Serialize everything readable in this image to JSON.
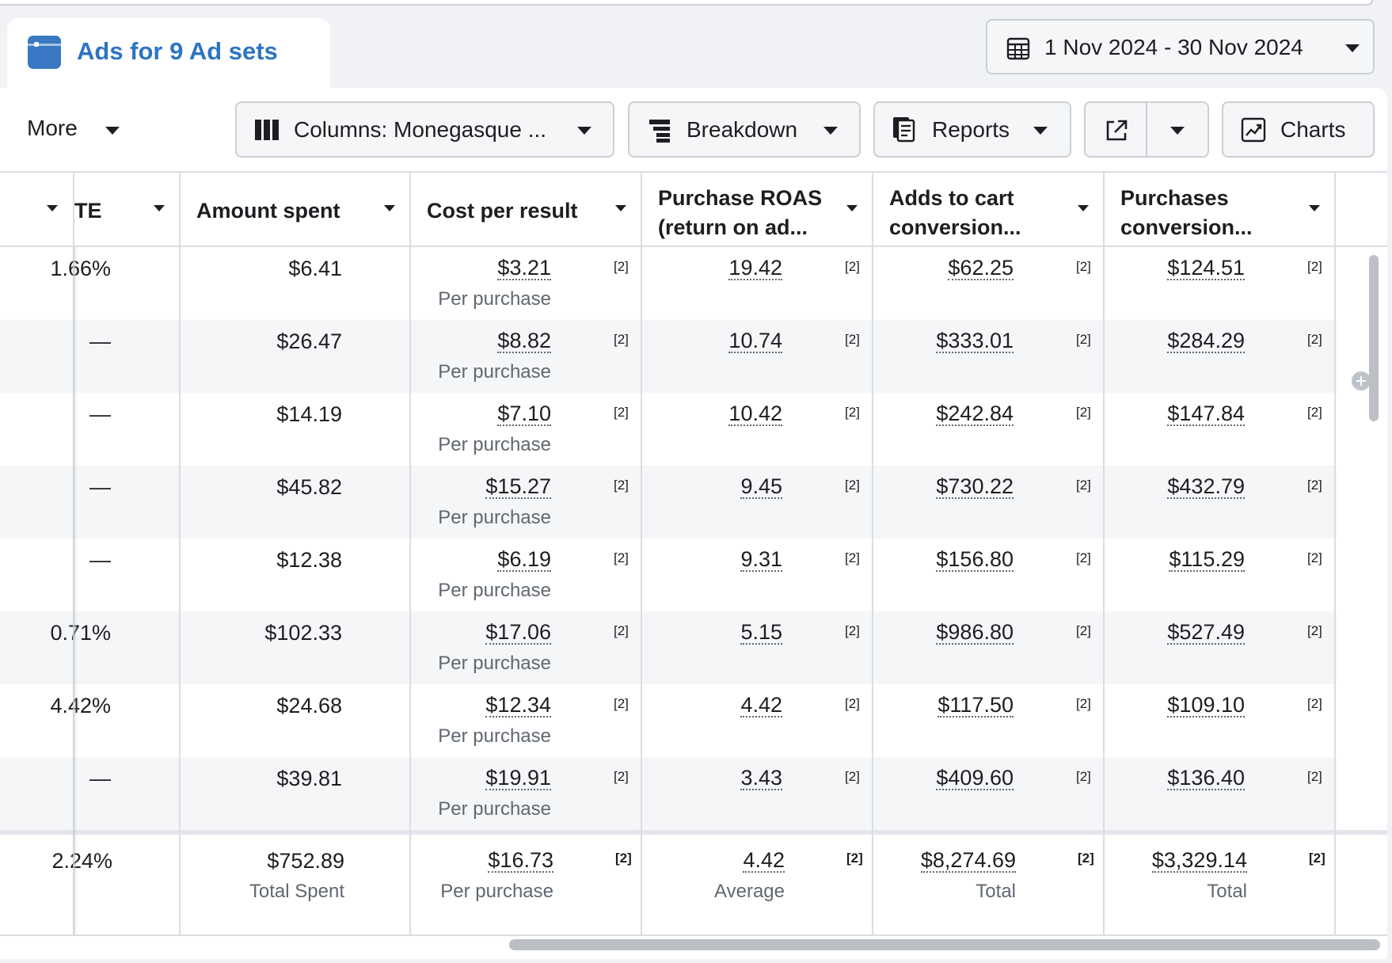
{
  "tab": {
    "title": "Ads for 9 Ad sets",
    "icon": "ads-window-icon"
  },
  "date_range": {
    "label": "1 Nov 2024 - 30 Nov 2024",
    "icon": "calendar-icon"
  },
  "toolbar": {
    "more": "More",
    "columns": "Columns: Monegasque ...",
    "breakdown": "Breakdown",
    "reports": "Reports",
    "charts": "Charts"
  },
  "headers": {
    "clipped": "TE",
    "amount_spent": "Amount spent",
    "cost_per_result": "Cost per result",
    "purchase_roas_1": "Purchase ROAS",
    "purchase_roas_2": "(return on ad...",
    "atc_1": "Adds to cart",
    "atc_2": "conversion...",
    "purch_1": "Purchases",
    "purch_2": "conversion..."
  },
  "note_marker": "[2]",
  "rows": [
    {
      "rate": "1.66%",
      "spent": "$6.41",
      "cpr": "$3.21",
      "cpr_sub": "Per purchase",
      "roas": "19.42",
      "atc": "$62.25",
      "purch": "$124.51"
    },
    {
      "rate": "—",
      "spent": "$26.47",
      "cpr": "$8.82",
      "cpr_sub": "Per purchase",
      "roas": "10.74",
      "atc": "$333.01",
      "purch": "$284.29"
    },
    {
      "rate": "—",
      "spent": "$14.19",
      "cpr": "$7.10",
      "cpr_sub": "Per purchase",
      "roas": "10.42",
      "atc": "$242.84",
      "purch": "$147.84"
    },
    {
      "rate": "—",
      "spent": "$45.82",
      "cpr": "$15.27",
      "cpr_sub": "Per purchase",
      "roas": "9.45",
      "atc": "$730.22",
      "purch": "$432.79"
    },
    {
      "rate": "—",
      "spent": "$12.38",
      "cpr": "$6.19",
      "cpr_sub": "Per purchase",
      "roas": "9.31",
      "atc": "$156.80",
      "purch": "$115.29"
    },
    {
      "rate": "0.71%",
      "spent": "$102.33",
      "cpr": "$17.06",
      "cpr_sub": "Per purchase",
      "roas": "5.15",
      "atc": "$986.80",
      "purch": "$527.49"
    },
    {
      "rate": "4.42%",
      "spent": "$24.68",
      "cpr": "$12.34",
      "cpr_sub": "Per purchase",
      "roas": "4.42",
      "atc": "$117.50",
      "purch": "$109.10"
    },
    {
      "rate": "—",
      "spent": "$39.81",
      "cpr": "$19.91",
      "cpr_sub": "Per purchase",
      "roas": "3.43",
      "atc": "$409.60",
      "purch": "$136.40"
    }
  ],
  "totals": {
    "rate": "2.24%",
    "spent": "$752.89",
    "spent_sub": "Total Spent",
    "cpr": "$16.73",
    "cpr_sub": "Per purchase",
    "roas": "4.42",
    "roas_sub": "Average",
    "atc": "$8,274.69",
    "atc_sub": "Total",
    "purch": "$3,329.14",
    "purch_sub": "Total"
  }
}
